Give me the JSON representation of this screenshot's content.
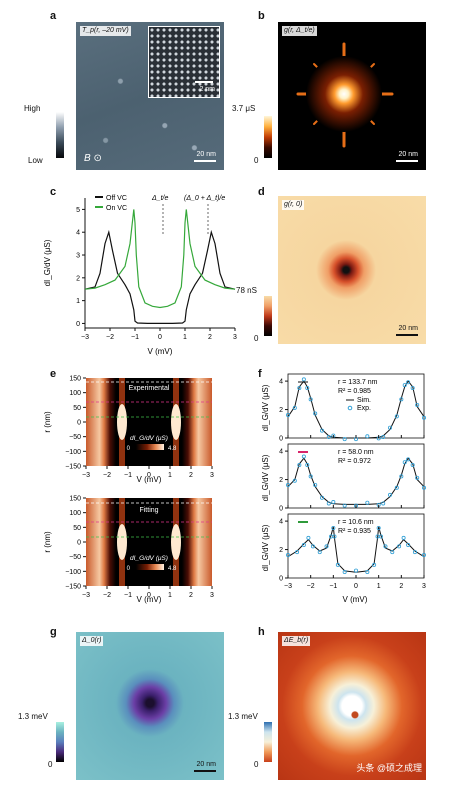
{
  "panels": {
    "a": {
      "letter": "a",
      "tag": "T_p(r, –20 mV)",
      "inset_scale": "2 nm",
      "scale": "20 nm",
      "cb_high": "High",
      "cb_low": "Low",
      "field": "B ⊙"
    },
    "b": {
      "letter": "b",
      "tag": "g(r, Δ_t/e)",
      "scale": "20 nm",
      "cb_max": "3.7 μS",
      "cb_min": "0"
    },
    "c": {
      "letter": "c",
      "legend": [
        "Off VC",
        "On VC"
      ],
      "anno1": "Δ_t/e",
      "anno2": "(Δ_0 + Δ_t)/e",
      "ylabel": "dI_G/dV (μS)",
      "xlabel": "V (mV)",
      "xticks": [
        "−3",
        "−2",
        "−1",
        "0",
        "1",
        "2",
        "3"
      ],
      "yticks": [
        "0",
        "1",
        "2",
        "3",
        "4",
        "5"
      ]
    },
    "d": {
      "letter": "d",
      "tag": "g(r, 0)",
      "scale": "20 nm",
      "cb_max": "78 nS",
      "cb_min": "0"
    },
    "e": {
      "letter": "e",
      "top_title": "Experimental",
      "bottom_title": "Fitting",
      "cb_title": "dI_G/dV (μS)",
      "cb_min": "0",
      "cb_max": "4.8",
      "ylabel": "r (nm)",
      "xlabel": "V (mV)",
      "yticks": [
        "150",
        "100",
        "50",
        "0",
        "−50",
        "−100",
        "−150"
      ],
      "xticks": [
        "−3",
        "−2",
        "−1",
        "0",
        "1",
        "2",
        "3"
      ]
    },
    "f": {
      "letter": "f",
      "ylabel": "dI_G/dV (μS)",
      "xlabel": "V (mV)",
      "xticks": [
        "−3",
        "−2",
        "−1",
        "0",
        "1",
        "2",
        "3"
      ],
      "rows": [
        {
          "r": "r = 133.7 nm",
          "r2": "R² = 0.985",
          "legend": [
            "Sim.",
            "Exp."
          ],
          "yticks": [
            "4",
            "2",
            "0"
          ]
        },
        {
          "r": "r = 58.0 nm",
          "r2": "R² = 0.972",
          "yticks": [
            "4",
            "2",
            "0"
          ]
        },
        {
          "r": "r = 10.6 nm",
          "r2": "R² = 0.935",
          "yticks": [
            "4",
            "2",
            "0"
          ]
        }
      ]
    },
    "g": {
      "letter": "g",
      "tag": "Δ_0(r)",
      "scale": "20 nm",
      "cb_max": "1.3 meV",
      "cb_min": "0"
    },
    "h": {
      "letter": "h",
      "tag": "ΔE_b(r)",
      "cb_max": "1.3 meV",
      "cb_min": "0",
      "watermark": "头条 @硕之成理"
    }
  },
  "chart_data": [
    {
      "type": "line",
      "panel": "c",
      "xlabel": "V (mV)",
      "ylabel": "dI_G/dV (μS)",
      "xlim": [
        -3,
        3
      ],
      "ylim": [
        -0.2,
        5.5
      ],
      "series": [
        {
          "name": "Off VC",
          "color": "#111111",
          "x": [
            -3,
            -2.6,
            -2.4,
            -2.2,
            -2.05,
            -1.9,
            -1.7,
            -1.4,
            -1.2,
            -1.05,
            -1.0,
            -0.9,
            -0.5,
            0,
            0.5,
            0.9,
            1.0,
            1.05,
            1.2,
            1.4,
            1.7,
            1.9,
            2.05,
            2.2,
            2.4,
            2.6,
            3
          ],
          "y": [
            1.5,
            1.6,
            2.2,
            3.5,
            4.0,
            3.2,
            2.2,
            1.7,
            1.3,
            0.6,
            0.1,
            0.02,
            0.0,
            0.0,
            0.0,
            0.02,
            0.1,
            0.6,
            1.3,
            1.7,
            2.2,
            3.2,
            4.0,
            3.5,
            2.2,
            1.6,
            1.5
          ]
        },
        {
          "name": "On VC",
          "color": "#35a83a",
          "x": [
            -3,
            -2.6,
            -2.2,
            -1.8,
            -1.4,
            -1.2,
            -1.05,
            -1.0,
            -0.95,
            -0.85,
            -0.6,
            -0.3,
            0,
            0.3,
            0.6,
            0.85,
            0.95,
            1.0,
            1.05,
            1.2,
            1.4,
            1.8,
            2.2,
            2.6,
            3
          ],
          "y": [
            1.5,
            1.55,
            1.7,
            1.9,
            2.5,
            3.5,
            5.0,
            4.4,
            3.0,
            1.6,
            0.9,
            0.75,
            0.7,
            0.75,
            0.9,
            1.6,
            3.0,
            4.4,
            5.0,
            3.5,
            2.5,
            1.9,
            1.7,
            1.55,
            1.5
          ]
        }
      ]
    },
    {
      "type": "line",
      "panel": "f",
      "xlabel": "V (mV)",
      "ylabel": "dI_G/dV (μS)",
      "xlim": [
        -3,
        3
      ],
      "ylim": [
        0,
        4.5
      ],
      "rows": [
        {
          "marker_color": "#888888",
          "x": [
            -3,
            -2.7,
            -2.5,
            -2.3,
            -2.15,
            -2.0,
            -1.8,
            -1.5,
            -1.2,
            -1.0,
            -0.5,
            0,
            0.5,
            1.0,
            1.2,
            1.5,
            1.8,
            2.0,
            2.15,
            2.3,
            2.5,
            2.7,
            3
          ],
          "y": [
            1.5,
            2.2,
            3.6,
            4.0,
            3.6,
            2.8,
            1.6,
            0.6,
            0.15,
            0.05,
            0.0,
            0.0,
            0.0,
            0.05,
            0.15,
            0.6,
            1.6,
            2.8,
            3.6,
            4.0,
            3.6,
            2.2,
            1.5
          ]
        },
        {
          "marker_color": "#d8246a",
          "x": [
            -3,
            -2.7,
            -2.5,
            -2.3,
            -2.15,
            -2.0,
            -1.8,
            -1.5,
            -1.2,
            -1.0,
            -0.5,
            0,
            0.5,
            1.0,
            1.2,
            1.5,
            1.8,
            2.0,
            2.15,
            2.3,
            2.5,
            2.7,
            3
          ],
          "y": [
            1.5,
            2.0,
            3.1,
            3.5,
            3.1,
            2.3,
            1.5,
            0.8,
            0.4,
            0.3,
            0.25,
            0.25,
            0.25,
            0.3,
            0.4,
            0.8,
            1.5,
            2.3,
            3.1,
            3.5,
            3.1,
            2.0,
            1.5
          ]
        },
        {
          "marker_color": "#2f9a3a",
          "x": [
            -3,
            -2.6,
            -2.3,
            -2.1,
            -1.9,
            -1.6,
            -1.3,
            -1.1,
            -1.0,
            -0.95,
            -0.8,
            -0.5,
            0,
            0.5,
            0.8,
            0.95,
            1.0,
            1.1,
            1.3,
            1.6,
            1.9,
            2.1,
            2.3,
            2.6,
            3
          ],
          "y": [
            1.5,
            1.9,
            2.4,
            2.7,
            2.3,
            1.9,
            2.1,
            3.0,
            3.6,
            2.8,
            1.0,
            0.5,
            0.4,
            0.5,
            1.0,
            2.8,
            3.6,
            3.0,
            2.1,
            1.9,
            2.3,
            2.7,
            2.4,
            1.9,
            1.5
          ]
        }
      ]
    }
  ]
}
